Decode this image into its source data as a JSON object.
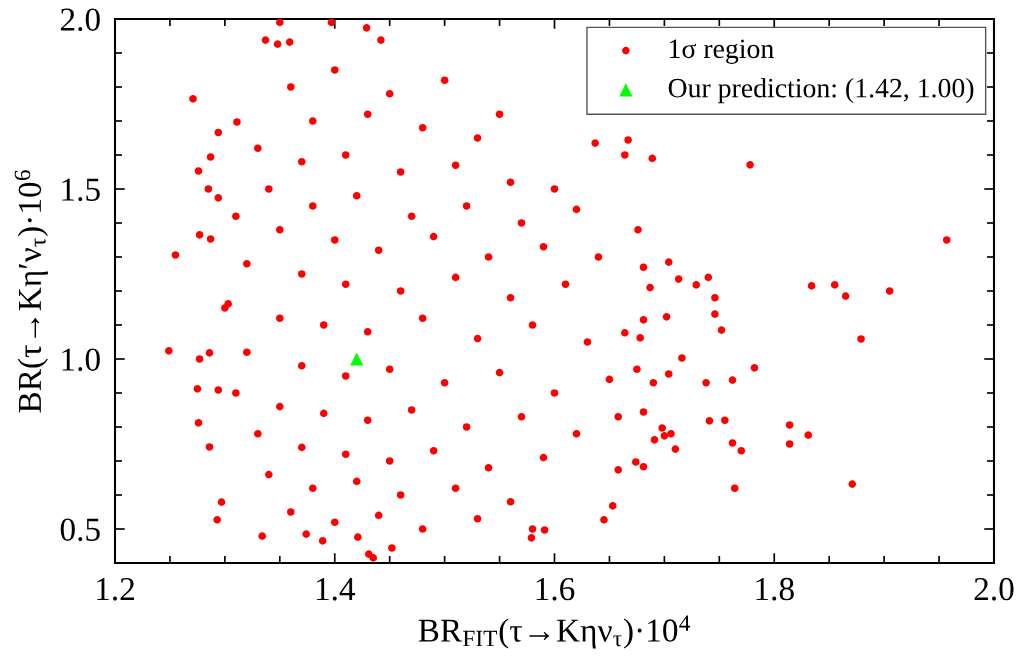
{
  "chart_data": {
    "type": "scatter",
    "xlabel": "BR$_{FIT}$(τ→Kην$_{τ}$)·10$^{4}$",
    "ylabel": "BR(τ→Kη′ν$_{τ}$)·10$^{6}$",
    "xlim": [
      1.2,
      2.0
    ],
    "ylim": [
      0.4,
      2.0
    ],
    "xticks": [
      1.2,
      {
        "value": 1.25,
        "label": null
      },
      {
        "value": 1.3,
        "label": null
      },
      {
        "value": 1.35,
        "label": null
      },
      1.4,
      {
        "value": 1.45,
        "label": null
      },
      {
        "value": 1.5,
        "label": null
      },
      {
        "value": 1.55,
        "label": null
      },
      1.6,
      {
        "value": 1.65,
        "label": null
      },
      {
        "value": 1.7,
        "label": null
      },
      {
        "value": 1.75,
        "label": null
      },
      1.8,
      {
        "value": 1.85,
        "label": null
      },
      {
        "value": 1.9,
        "label": null
      },
      {
        "value": 1.95,
        "label": null
      },
      {
        "value": 2.0,
        "label": "2.0"
      }
    ],
    "yticks": [
      0.5,
      {
        "value": 0.6,
        "label": null
      },
      {
        "value": 0.7,
        "label": null
      },
      {
        "value": 0.8,
        "label": null
      },
      {
        "value": 0.9,
        "label": null
      },
      {
        "value": 1.0,
        "label": "1.0"
      },
      {
        "value": 1.1,
        "label": null
      },
      {
        "value": 1.2,
        "label": null
      },
      {
        "value": 1.3,
        "label": null
      },
      {
        "value": 1.4,
        "label": null
      },
      1.5,
      {
        "value": 1.6,
        "label": null
      },
      {
        "value": 1.7,
        "label": null
      },
      {
        "value": 1.8,
        "label": null
      },
      {
        "value": 1.9,
        "label": null
      },
      {
        "value": 2.0,
        "label": "2.0"
      }
    ],
    "grid": false,
    "legend": "top right",
    "series": [
      {
        "name": "1σ region",
        "color": "#ff0000",
        "marker": "circle",
        "x": [
          1.957,
          1.834,
          1.855,
          1.865,
          1.905,
          1.746,
          1.74,
          1.729,
          1.713,
          1.704,
          1.687,
          1.681,
          1.676,
          1.667,
          1.664,
          1.637,
          1.778,
          1.689,
          1.879,
          1.782,
          1.762,
          1.738,
          1.716,
          1.814,
          1.814,
          1.831,
          1.871,
          1.764,
          1.77,
          1.762,
          1.755,
          1.741,
          1.71,
          1.706,
          1.7,
          1.698,
          1.691,
          1.681,
          1.674,
          1.645,
          1.653,
          1.658,
          1.579,
          1.591,
          1.658,
          1.69,
          1.704,
          1.681,
          1.675,
          1.746,
          1.752,
          1.702,
          1.681,
          1.664,
          1.678,
          1.255,
          1.271,
          1.294,
          1.287,
          1.276,
          1.285,
          1.294,
          1.277,
          1.287,
          1.311,
          1.337,
          1.348,
          1.359,
          1.429,
          1.442,
          1.397,
          1.35,
          1.249,
          1.277,
          1.286,
          1.275,
          1.294,
          1.276,
          1.286,
          1.297,
          1.293,
          1.334,
          1.389,
          1.435,
          1.431,
          1.421,
          1.374,
          1.452,
          1.303,
          1.36,
          1.4,
          1.45,
          1.5,
          1.38,
          1.43,
          1.48,
          1.53,
          1.55,
          1.33,
          1.37,
          1.41,
          1.46,
          1.51,
          1.56,
          1.6,
          1.34,
          1.38,
          1.42,
          1.47,
          1.52,
          1.57,
          1.62,
          1.31,
          1.35,
          1.4,
          1.44,
          1.49,
          1.54,
          1.59,
          1.64,
          1.32,
          1.37,
          1.41,
          1.46,
          1.51,
          1.56,
          1.61,
          1.3,
          1.35,
          1.39,
          1.43,
          1.48,
          1.53,
          1.58,
          1.63,
          1.32,
          1.37,
          1.41,
          1.45,
          1.5,
          1.55,
          1.6,
          1.65,
          1.31,
          1.35,
          1.39,
          1.43,
          1.47,
          1.52,
          1.57,
          1.62,
          1.33,
          1.37,
          1.41,
          1.45,
          1.49,
          1.54,
          1.59,
          1.34,
          1.38,
          1.42,
          1.46,
          1.51,
          1.56,
          1.36,
          1.4,
          1.44,
          1.48,
          1.53,
          1.58
        ],
        "values": [
          1.35,
          1.215,
          1.218,
          1.185,
          1.2,
          1.18,
          1.24,
          1.218,
          1.235,
          1.285,
          1.21,
          1.27,
          1.38,
          1.644,
          1.6,
          1.635,
          1.571,
          1.59,
          1.059,
          0.974,
          0.938,
          0.93,
          1.003,
          0.806,
          0.75,
          0.776,
          0.632,
          0.62,
          0.73,
          0.753,
          0.82,
          0.818,
          0.735,
          0.78,
          0.774,
          0.797,
          0.762,
          0.683,
          0.697,
          0.527,
          0.568,
          0.674,
          0.474,
          0.497,
          0.83,
          0.93,
          0.956,
          0.844,
          0.97,
          1.132,
          1.085,
          1.124,
          1.115,
          1.077,
          1.062,
          1.306,
          1.765,
          1.666,
          1.594,
          1.553,
          1.5,
          1.474,
          1.365,
          1.353,
          1.697,
          1.938,
          1.926,
          1.932,
          1.974,
          1.938,
          1.99,
          1.99,
          1.024,
          1.0,
          1.018,
          0.912,
          0.909,
          0.812,
          0.741,
          0.579,
          0.527,
          0.479,
          0.465,
          0.415,
          0.426,
          0.476,
          0.485,
          0.444,
          1.162,
          1.8,
          1.85,
          1.78,
          1.82,
          1.7,
          1.72,
          1.68,
          1.65,
          1.72,
          1.62,
          1.58,
          1.6,
          1.55,
          1.57,
          1.52,
          1.5,
          1.5,
          1.45,
          1.48,
          1.42,
          1.45,
          1.4,
          1.44,
          1.42,
          1.38,
          1.35,
          1.32,
          1.36,
          1.3,
          1.33,
          1.3,
          1.28,
          1.25,
          1.22,
          1.2,
          1.24,
          1.18,
          1.22,
          1.15,
          1.12,
          1.1,
          1.08,
          1.12,
          1.06,
          1.1,
          1.05,
          1.02,
          0.98,
          0.95,
          0.97,
          0.93,
          0.96,
          0.9,
          0.94,
          0.9,
          0.86,
          0.84,
          0.82,
          0.85,
          0.8,
          0.83,
          0.78,
          0.78,
          0.74,
          0.72,
          0.7,
          0.73,
          0.68,
          0.71,
          0.66,
          0.62,
          0.64,
          0.6,
          0.62,
          0.58,
          0.55,
          0.52,
          0.54,
          0.5,
          0.53,
          0.5
        ]
      },
      {
        "name": "Our prediction: (1.42, 1.00)",
        "color": "#00ff00",
        "marker": "triangle",
        "x": [
          1.42
        ],
        "values": [
          1.0
        ]
      }
    ]
  }
}
